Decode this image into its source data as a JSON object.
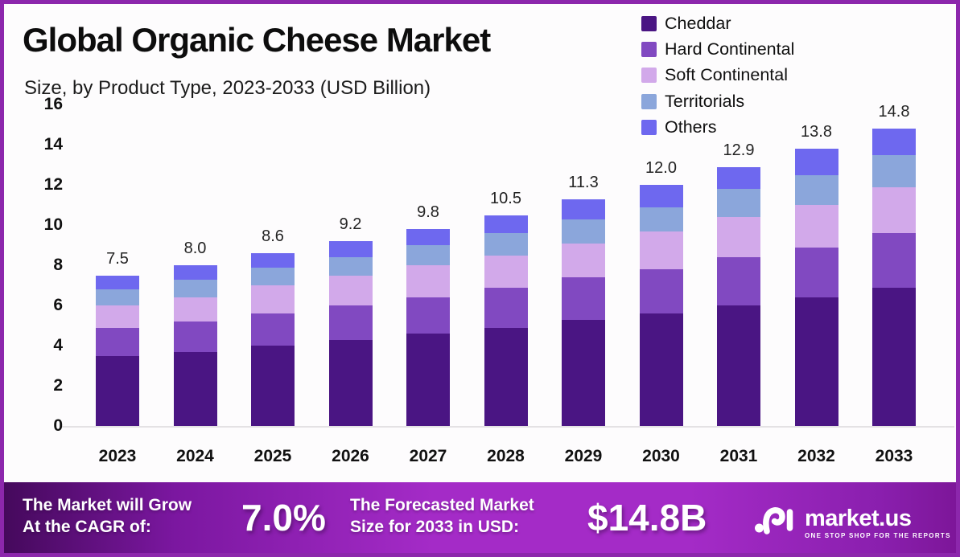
{
  "frame": {
    "border_color": "#8C27AC",
    "background": "#FDFCFD"
  },
  "chart_data": {
    "type": "bar",
    "stacked": true,
    "title": "Global Organic Cheese Market",
    "subtitle": "Size, by Product Type, 2023-2033 (USD Billion)",
    "unit": "USD Billion",
    "categories": [
      "2023",
      "2024",
      "2025",
      "2026",
      "2027",
      "2028",
      "2029",
      "2030",
      "2031",
      "2032",
      "2033"
    ],
    "series": [
      {
        "name": "Cheddar",
        "color": "#4A1583",
        "values": [
          3.5,
          3.7,
          4.0,
          4.3,
          4.6,
          4.9,
          5.3,
          5.6,
          6.0,
          6.4,
          6.9
        ]
      },
      {
        "name": "Hard Continental",
        "color": "#8149C1",
        "values": [
          1.4,
          1.5,
          1.6,
          1.7,
          1.8,
          2.0,
          2.1,
          2.2,
          2.4,
          2.5,
          2.7
        ]
      },
      {
        "name": "Soft Continental",
        "color": "#D2A9EA",
        "values": [
          1.1,
          1.2,
          1.4,
          1.5,
          1.6,
          1.6,
          1.7,
          1.9,
          2.0,
          2.1,
          2.3
        ]
      },
      {
        "name": "Territorials",
        "color": "#8BA6DB",
        "values": [
          0.8,
          0.9,
          0.9,
          0.9,
          1.0,
          1.1,
          1.2,
          1.2,
          1.4,
          1.5,
          1.6
        ]
      },
      {
        "name": "Others",
        "color": "#6E68EF",
        "values": [
          0.7,
          0.7,
          0.7,
          0.8,
          0.8,
          0.9,
          1.0,
          1.1,
          1.1,
          1.3,
          1.3
        ]
      }
    ],
    "totals": [
      7.5,
      8.0,
      8.6,
      9.2,
      9.8,
      10.5,
      11.3,
      12.0,
      12.9,
      13.8,
      14.8
    ],
    "y_ticks": [
      0,
      2,
      4,
      6,
      8,
      10,
      12,
      14,
      16
    ],
    "ylim": [
      0,
      16
    ],
    "grid": false,
    "legend_position": "top-right"
  },
  "banner": {
    "gradient": [
      "#45095C",
      "#A42BC7",
      "#7D1699"
    ],
    "grow_line1": "The Market will Grow",
    "grow_line2": "At the CAGR of:",
    "cagr_value": "7.0%",
    "forecast_line1": "The Forecasted Market",
    "forecast_line2": "Size for 2033 in USD:",
    "forecast_value": "$14.8B",
    "brand_name": "market.us",
    "brand_tagline": "ONE STOP SHOP FOR THE REPORTS"
  }
}
